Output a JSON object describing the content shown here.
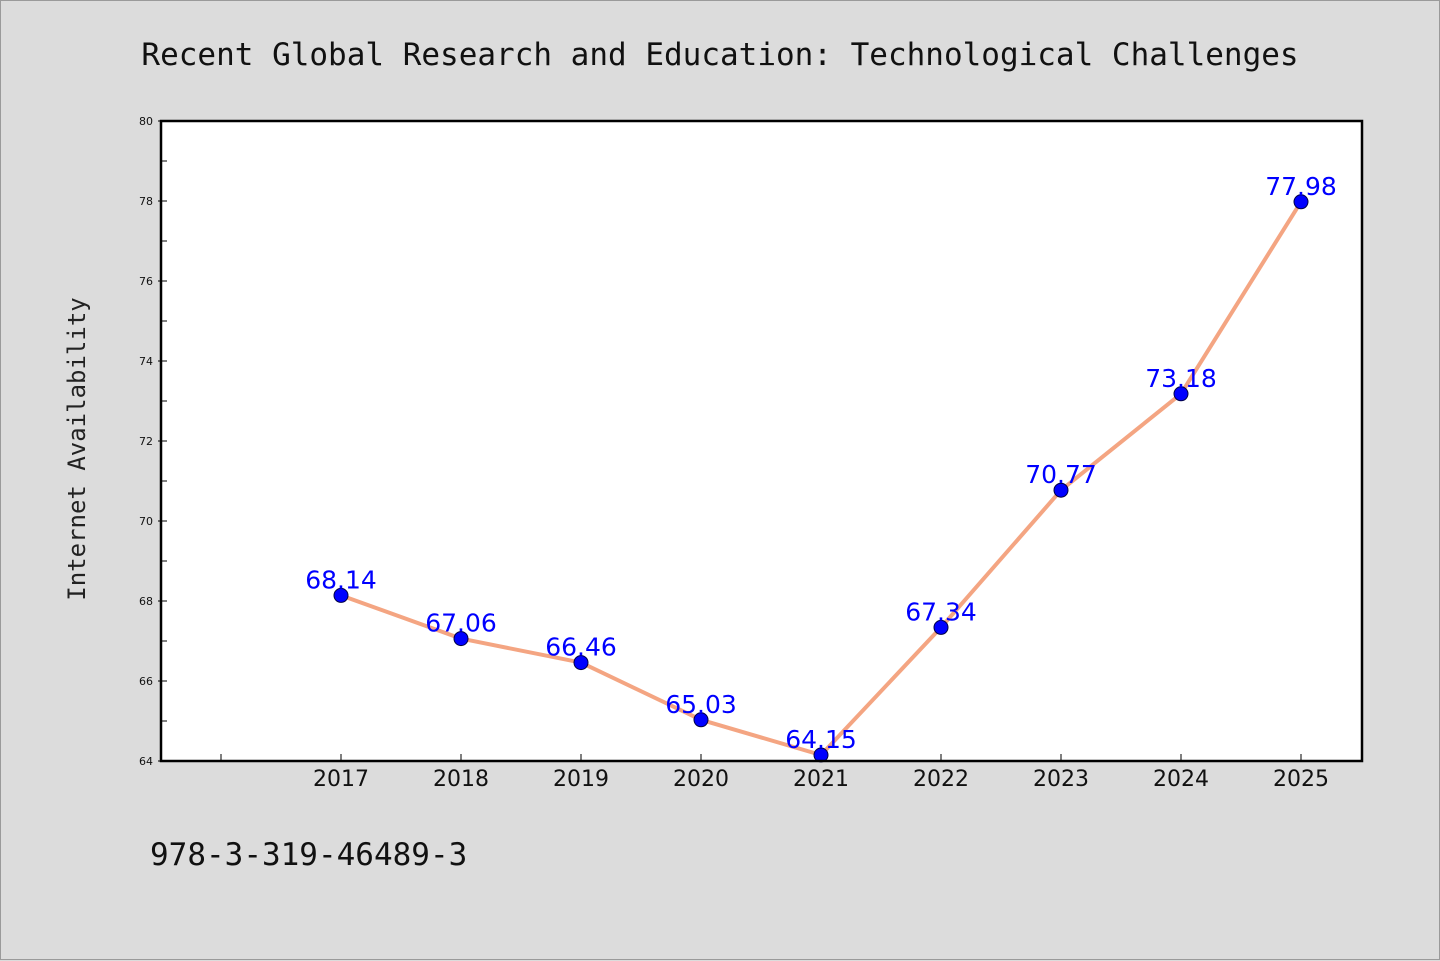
{
  "chart_data": {
    "type": "line",
    "title": "Recent Global Research and Education: Technological Challenges",
    "xlabel": "",
    "ylabel": "Internet Availability",
    "categories": [
      "2017",
      "2018",
      "2019",
      "2020",
      "2021",
      "2022",
      "2023",
      "2024",
      "2025"
    ],
    "series": [
      {
        "values": [
          68.14,
          67.06,
          66.46,
          65.03,
          64.15,
          67.34,
          70.77,
          73.18,
          77.98
        ],
        "labels": [
          "68.14",
          "67.06",
          "66.46",
          "65.03",
          "64.15",
          "67.34",
          "70.77",
          "73.18",
          "77.98"
        ],
        "line_color": "#f4a582",
        "marker_color": "#0000ff",
        "label_color": "#0000ff"
      }
    ],
    "ylim": [
      64,
      80
    ],
    "y_ticks": [
      "64",
      "66",
      "68",
      "70",
      "72",
      "74",
      "76",
      "78",
      "80"
    ],
    "grid": false,
    "legend": "none"
  },
  "footnote": "978-3-319-46489-3",
  "colors": {
    "background": "#dcdcdc",
    "plot_background": "#ffffff",
    "axes": "#000000"
  }
}
